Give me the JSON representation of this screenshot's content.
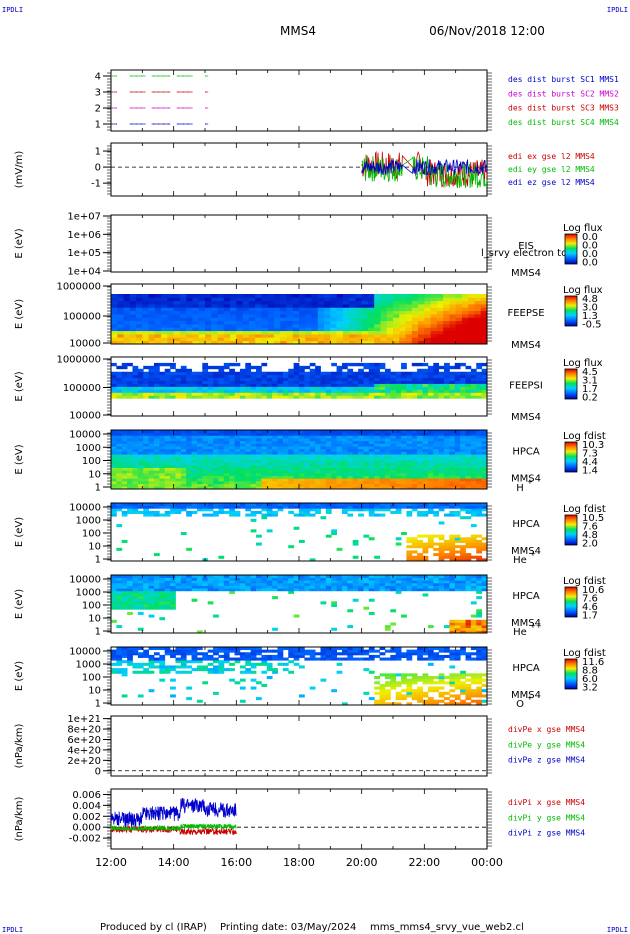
{
  "header": {
    "corner_left_top": "IPDLI",
    "corner_right_top": "IPDLI",
    "corner_left_bottom": "IPDLI",
    "corner_right_bottom": "IPDLI",
    "spacecraft": "MMS4",
    "datetime": "06/Nov/2018 12:00"
  },
  "footer": {
    "produced_by": "Produced by cl (IRAP)",
    "printing_date": "Printing date: 03/May/2024",
    "filename": "mms_mms4_srvy_vue_web2.cl"
  },
  "colors": {
    "mms1": "#0000cc",
    "mms2": "#cc00cc",
    "mms3": "#cc0000",
    "mms4": "#00bb00",
    "x": "#cc0000",
    "y": "#00bb00",
    "z": "#0000cc"
  },
  "chart_data": [
    {
      "type": "line",
      "panel": "burst",
      "ylabel": "",
      "ylim": [
        0.5,
        4.5
      ],
      "yticks": [
        "1",
        "2",
        "3",
        "4"
      ],
      "legend": [
        "des dist burst SC1 MMS1",
        "des dist burst SC2 MMS2",
        "des dist burst SC3 MMS3",
        "des dist burst SC4 MMS4"
      ],
      "series": [
        {
          "name": "des dist burst SC1 MMS1",
          "level": 1,
          "segments": [
            [
              12.0,
              12.2
            ],
            [
              12.6,
              13.1
            ],
            [
              13.3,
              13.9
            ],
            [
              14.1,
              14.6
            ],
            [
              15.0,
              15.1
            ]
          ]
        },
        {
          "name": "des dist burst SC2 MMS2",
          "level": 2,
          "segments": [
            [
              12.0,
              12.2
            ],
            [
              12.6,
              13.1
            ],
            [
              13.3,
              13.9
            ],
            [
              14.1,
              14.6
            ],
            [
              15.0,
              15.1
            ]
          ]
        },
        {
          "name": "des dist burst SC3 MMS3",
          "level": 3,
          "segments": [
            [
              12.0,
              12.2
            ],
            [
              12.6,
              13.1
            ],
            [
              13.3,
              13.9
            ],
            [
              14.1,
              14.6
            ],
            [
              15.0,
              15.1
            ]
          ]
        },
        {
          "name": "des dist burst SC4 MMS4",
          "level": 4,
          "segments": [
            [
              12.0,
              12.2
            ],
            [
              12.6,
              13.1
            ],
            [
              13.3,
              13.9
            ],
            [
              14.1,
              14.6
            ],
            [
              15.0,
              15.1
            ]
          ]
        }
      ]
    },
    {
      "type": "line",
      "panel": "edi",
      "ylabel": "(mV/m)",
      "ylim": [
        -1.8,
        1.5
      ],
      "yticks": [
        "1",
        "0",
        "-1"
      ],
      "legend": [
        "edi ex gse l2 MMS4",
        "edi ey gse l2 MMS4",
        "edi ez gse l2 MMS4"
      ],
      "data_range_hours": [
        20.0,
        24.0
      ],
      "series": [
        {
          "name": "edi ex gse l2 MMS4",
          "approx_range": [
            -1.2,
            1.0
          ]
        },
        {
          "name": "edi ey gse l2 MMS4",
          "approx_range": [
            -1.3,
            0.8
          ]
        },
        {
          "name": "edi ez gse l2 MMS4",
          "approx_range": [
            -0.6,
            0.6
          ]
        }
      ]
    },
    {
      "type": "heatmap",
      "panel": "eis",
      "ylabel": "E (eV)",
      "yticks": [
        "1e+07",
        "1e+06",
        "1e+05",
        "1e+04"
      ],
      "label": "EIS",
      "sub": "MMS4",
      "overlay_text": "l_srvy electron to",
      "colorbar_title": "Log flux",
      "colorbar_ticks": [
        "0.0",
        "0.0",
        "0.0",
        "0.0"
      ],
      "empty": true
    },
    {
      "type": "heatmap",
      "panel": "feeps_e",
      "ylabel": "E (eV)",
      "yticks": [
        "1000000",
        "100000",
        "10000"
      ],
      "label": "FEEPSE",
      "sub": "MMS4",
      "colorbar_title": "Log flux",
      "colorbar_ticks": [
        "4.8",
        "3.0",
        "1.3",
        "-0.5"
      ]
    },
    {
      "type": "heatmap",
      "panel": "feeps_i",
      "ylabel": "E (eV)",
      "yticks": [
        "1000000",
        "100000",
        "10000"
      ],
      "label": "FEEPSI",
      "sub": "MMS4",
      "colorbar_title": "Log flux",
      "colorbar_ticks": [
        "4.5",
        "3.1",
        "1.7",
        "0.2"
      ]
    },
    {
      "type": "heatmap",
      "panel": "hpca_h",
      "ylabel": "E (eV)",
      "yticks": [
        "10000",
        "1000",
        "100",
        "10",
        "1"
      ],
      "label": "HPCA",
      "sub": "MMS4",
      "species": "H",
      "charge": "+",
      "colorbar_title": "Log fdist",
      "colorbar_ticks": [
        "10.3",
        "7.3",
        "4.4",
        "1.4"
      ]
    },
    {
      "type": "heatmap",
      "panel": "hpca_he",
      "ylabel": "E (eV)",
      "yticks": [
        "10000",
        "1000",
        "100",
        "10",
        "1"
      ],
      "label": "HPCA",
      "sub": "MMS4",
      "species": "He",
      "charge": "+",
      "colorbar_title": "Log fdist",
      "colorbar_ticks": [
        "10.5",
        "7.6",
        "4.8",
        "2.0"
      ]
    },
    {
      "type": "heatmap",
      "panel": "hpca_hepp",
      "ylabel": "E (eV)",
      "yticks": [
        "10000",
        "1000",
        "100",
        "10",
        "1"
      ],
      "label": "HPCA",
      "sub": "MMS4",
      "species": "He",
      "charge": "++",
      "colorbar_title": "Log fdist",
      "colorbar_ticks": [
        "10.6",
        "7.6",
        "4.6",
        "1.7"
      ]
    },
    {
      "type": "heatmap",
      "panel": "hpca_o",
      "ylabel": "E (eV)",
      "yticks": [
        "10000",
        "1000",
        "100",
        "10",
        "1"
      ],
      "label": "HPCA",
      "sub": "MMS4",
      "species": "O",
      "charge": "+",
      "colorbar_title": "Log fdist",
      "colorbar_ticks": [
        "11.6",
        "8.8",
        "6.0",
        "3.2"
      ]
    },
    {
      "type": "line",
      "panel": "divpe",
      "ylabel": "(nPa/km)",
      "ylim": [
        -1e+20,
        1.05e+21
      ],
      "yticks": [
        "1e+21",
        "8e+20",
        "6e+20",
        "4e+20",
        "2e+20",
        "0"
      ],
      "legend": [
        "divPe x gse MMS4",
        "divPe y gse MMS4",
        "divPe z gse MMS4"
      ],
      "empty": true
    },
    {
      "type": "line",
      "panel": "divpi",
      "ylabel": "(nPa/km)",
      "ylim": [
        -0.004,
        0.007
      ],
      "yticks": [
        "0.006",
        "0.004",
        "0.002",
        "0.000",
        "-0.002"
      ],
      "legend": [
        "divPi x gse MMS4",
        "divPi y gse MMS4",
        "divPi z gse MMS4"
      ],
      "data_range_hours": [
        12.0,
        16.0
      ],
      "series": [
        {
          "name": "divPi x gse MMS4",
          "approx_range": [
            -0.0005,
            0.0005
          ]
        },
        {
          "name": "divPi y gse MMS4",
          "approx_range": [
            -0.0015,
            0.0003
          ]
        },
        {
          "name": "divPi z gse MMS4",
          "approx_range": [
            0.0,
            0.006
          ]
        }
      ]
    }
  ],
  "x_axis": {
    "ticks": [
      "12:00",
      "14:00",
      "16:00",
      "18:00",
      "20:00",
      "22:00",
      "00:00"
    ],
    "range_hours": [
      12.0,
      24.0
    ]
  }
}
